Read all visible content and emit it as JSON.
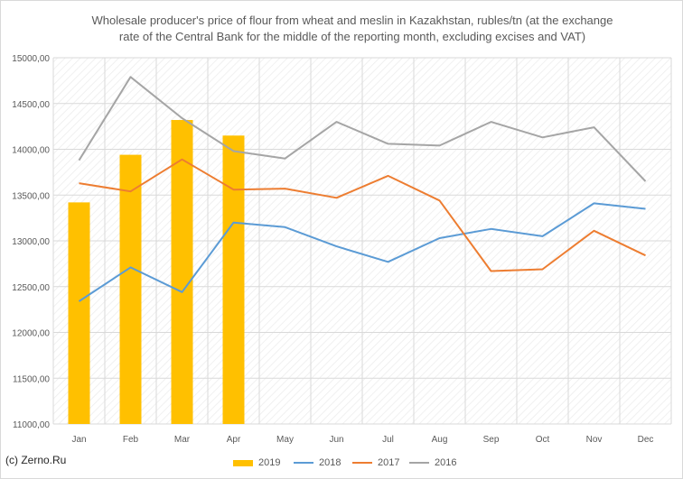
{
  "chart_data": {
    "type": "bar+line",
    "title": "Wholesale producer's price of flour from wheat and meslin in Kazakhstan, rubles/tn (at the exchange rate of the Central Bank for the middle of the reporting month, excluding excises and VAT)",
    "categories": [
      "Jan",
      "Feb",
      "Mar",
      "Apr",
      "May",
      "Jun",
      "Jul",
      "Aug",
      "Sep",
      "Oct",
      "Nov",
      "Dec"
    ],
    "ylim": [
      11000,
      15000
    ],
    "yticks": [
      "11000,00",
      "11500,00",
      "12000,00",
      "12500,00",
      "13000,00",
      "13500,00",
      "14000,00",
      "14500,00",
      "15000,00"
    ],
    "grid": true,
    "legend_position": "bottom",
    "series": [
      {
        "name": "2019",
        "type": "bar",
        "color": "#FFC000",
        "values": [
          13420,
          13940,
          14320,
          14150,
          null,
          null,
          null,
          null,
          null,
          null,
          null,
          null
        ]
      },
      {
        "name": "2018",
        "type": "line",
        "color": "#5B9BD5",
        "values": [
          12340,
          12710,
          12440,
          13200,
          13150,
          12940,
          12770,
          13030,
          13130,
          13050,
          13410,
          13350
        ]
      },
      {
        "name": "2017",
        "type": "line",
        "color": "#ED7D31",
        "values": [
          13630,
          13540,
          13890,
          13560,
          13570,
          13470,
          13710,
          13440,
          12670,
          12690,
          13110,
          12840
        ]
      },
      {
        "name": "2016",
        "type": "line",
        "color": "#A5A5A5",
        "values": [
          13880,
          14790,
          14340,
          13980,
          13900,
          14300,
          14060,
          14040,
          14300,
          14130,
          14240,
          13650
        ]
      }
    ]
  },
  "watermark": "(c) Zerno.Ru"
}
